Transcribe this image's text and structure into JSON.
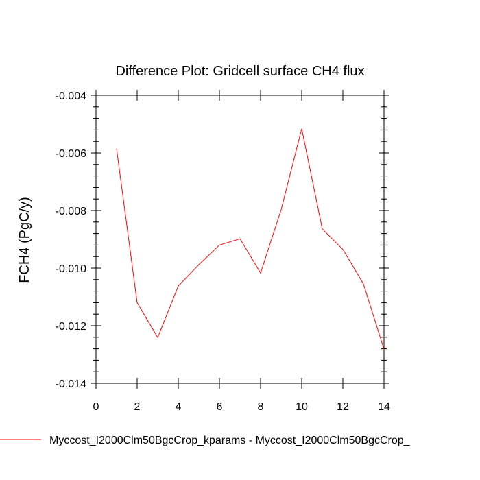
{
  "chart_data": {
    "type": "line",
    "title": "Difference Plot: Gridcell surface CH4 flux",
    "xlabel": "",
    "ylabel": "FCH4  (PgC/y)",
    "xlim": [
      0,
      14
    ],
    "ylim": [
      -0.014,
      -0.004
    ],
    "x_ticks": [
      0,
      2,
      4,
      6,
      8,
      10,
      12,
      14
    ],
    "x_tick_labels": [
      "0",
      "2",
      "4",
      "6",
      "8",
      "10",
      "12",
      "14"
    ],
    "y_ticks": [
      -0.004,
      -0.006,
      -0.008,
      -0.01,
      -0.012,
      -0.014
    ],
    "y_tick_labels": [
      "-0.004",
      "-0.006",
      "-0.008",
      "-0.010",
      "-0.012",
      "-0.014"
    ],
    "grid": false,
    "legend_position": "bottom",
    "series": [
      {
        "name": "Myccost_I2000Clm50BgcCrop_kparams - Myccost_I2000Clm50BgcCrop_",
        "color": "#ff0000",
        "x": [
          1,
          2,
          3,
          4,
          5,
          6,
          7,
          8,
          9,
          10,
          11,
          12,
          13,
          14
        ],
        "y": [
          -0.00585,
          -0.0112,
          -0.01241,
          -0.01062,
          -0.00988,
          -0.0092,
          -0.00898,
          -0.01017,
          -0.00797,
          -0.00516,
          -0.00864,
          -0.00935,
          -0.01055,
          -0.01282
        ]
      }
    ]
  }
}
